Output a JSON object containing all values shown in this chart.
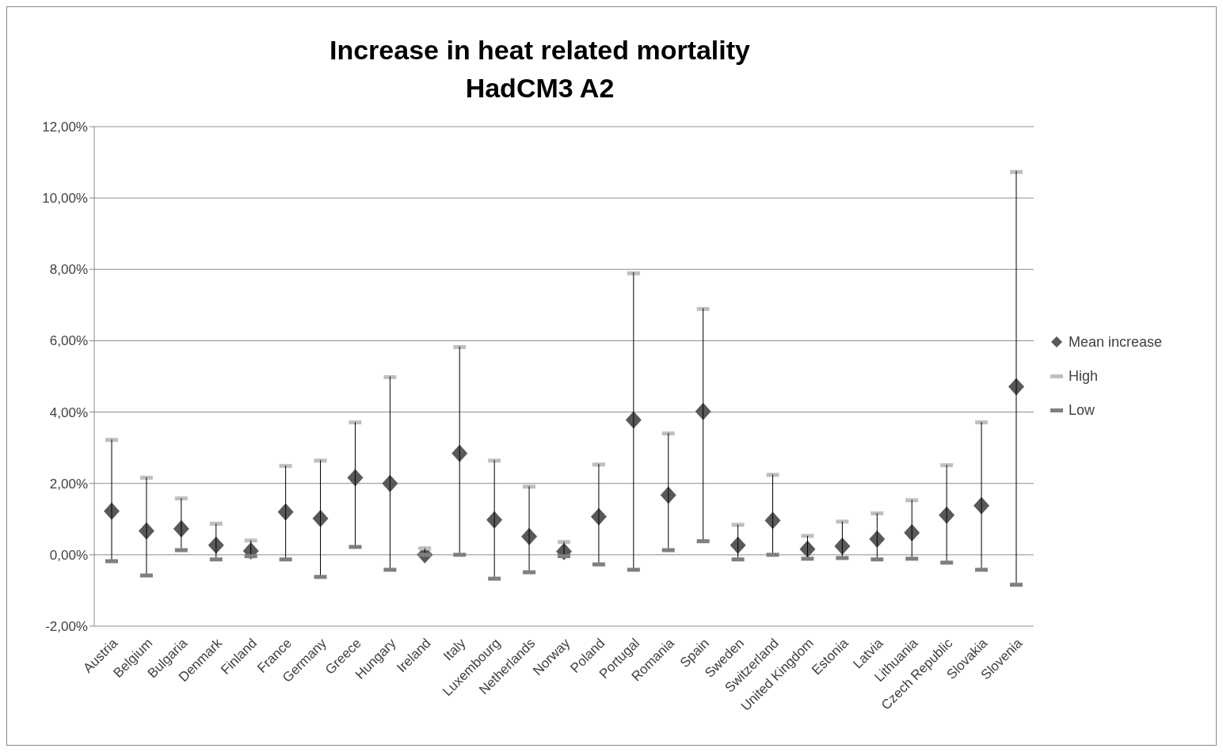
{
  "chart_data": {
    "type": "scatter",
    "title": "Increase in heat related mortality\nHadCM3 A2",
    "categories": [
      "Austria",
      "Belgium",
      "Bulgaria",
      "Denmark",
      "Finland",
      "France",
      "Germany",
      "Greece",
      "Hungary",
      "Ireland",
      "Italy",
      "Luxembourg",
      "Netherlands",
      "Norway",
      "Poland",
      "Portugal",
      "Romania",
      "Spain",
      "Sweden",
      "Switzerland",
      "United Kingdom",
      "Estonia",
      "Latvia",
      "Lithuania",
      "Czech Republic",
      "Slovakia",
      "Slovenia"
    ],
    "series": [
      {
        "name": "Mean increase",
        "color": "#595959",
        "marker": "diamond",
        "values": [
          1.22,
          0.67,
          0.73,
          0.27,
          0.11,
          1.2,
          1.02,
          2.16,
          2.0,
          0.0,
          2.84,
          0.98,
          0.51,
          0.09,
          1.07,
          3.78,
          1.67,
          4.02,
          0.27,
          0.96,
          0.16,
          0.24,
          0.44,
          0.62,
          1.11,
          1.38,
          4.71
        ]
      },
      {
        "name": "High",
        "color": "#bfbfbf",
        "values": [
          3.22,
          2.16,
          1.58,
          0.87,
          0.4,
          2.49,
          2.64,
          3.71,
          4.98,
          0.18,
          5.82,
          2.64,
          1.91,
          0.36,
          2.53,
          7.89,
          3.4,
          6.89,
          0.84,
          2.24,
          0.53,
          0.93,
          1.16,
          1.53,
          2.51,
          3.71,
          10.73
        ]
      },
      {
        "name": "Low",
        "color": "#7f7f7f",
        "values": [
          -0.18,
          -0.58,
          0.13,
          -0.13,
          -0.04,
          -0.13,
          -0.62,
          0.22,
          -0.42,
          0.0,
          0.0,
          -0.67,
          -0.49,
          -0.04,
          -0.27,
          -0.42,
          0.13,
          0.38,
          -0.13,
          0.0,
          -0.11,
          -0.09,
          -0.13,
          -0.11,
          -0.22,
          -0.42,
          -0.84
        ]
      }
    ],
    "ylim": [
      -2,
      12
    ],
    "yticks": [
      {
        "value": -2,
        "label": "-2,00%"
      },
      {
        "value": 0,
        "label": "0,00%"
      },
      {
        "value": 2,
        "label": "2,00%"
      },
      {
        "value": 4,
        "label": "4,00%"
      },
      {
        "value": 6,
        "label": "6,00%"
      },
      {
        "value": 8,
        "label": "8,00%"
      },
      {
        "value": 10,
        "label": "10,00%"
      },
      {
        "value": 12,
        "label": "12,00%"
      }
    ],
    "grid": "y",
    "legend": "right"
  }
}
